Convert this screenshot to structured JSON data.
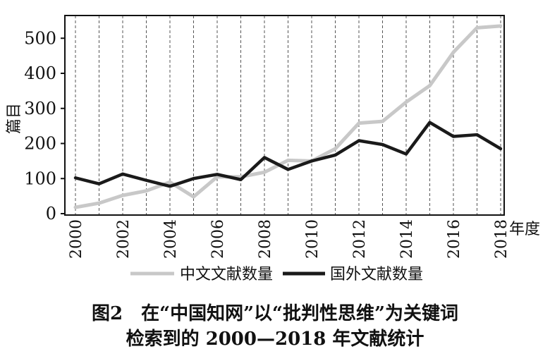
{
  "chart_data": {
    "type": "line",
    "x": [
      2000,
      2001,
      2002,
      2003,
      2004,
      2005,
      2006,
      2007,
      2008,
      2009,
      2010,
      2011,
      2012,
      2013,
      2014,
      2015,
      2016,
      2017,
      2018
    ],
    "x_tick_labels": [
      "2000",
      "2002",
      "2004",
      "2006",
      "2008",
      "2010",
      "2012",
      "2014",
      "2016",
      "2018"
    ],
    "x_unit_label": "年度",
    "ylabel": "篇目",
    "ylim": [
      0,
      540
    ],
    "y_ticks": [
      0,
      100,
      200,
      300,
      400,
      500
    ],
    "grid": "vertical dashed",
    "legend_position": "bottom",
    "series": [
      {
        "name": "中文文献数量",
        "color": "#c8c8c8",
        "values": [
          18,
          30,
          52,
          65,
          90,
          48,
          105,
          105,
          118,
          152,
          150,
          185,
          258,
          263,
          318,
          365,
          460,
          530,
          535
        ]
      },
      {
        "name": "国外文献数量",
        "color": "#1a1a1a",
        "values": [
          102,
          85,
          113,
          95,
          78,
          100,
          112,
          97,
          160,
          126,
          150,
          167,
          208,
          197,
          170,
          260,
          220,
          225,
          185
        ]
      }
    ]
  },
  "caption": {
    "figure_no": "图2",
    "line1": "在“中国知网”以“批判性思维”为关键词",
    "line2": "检索到的 2000—2018 年文献统计"
  }
}
